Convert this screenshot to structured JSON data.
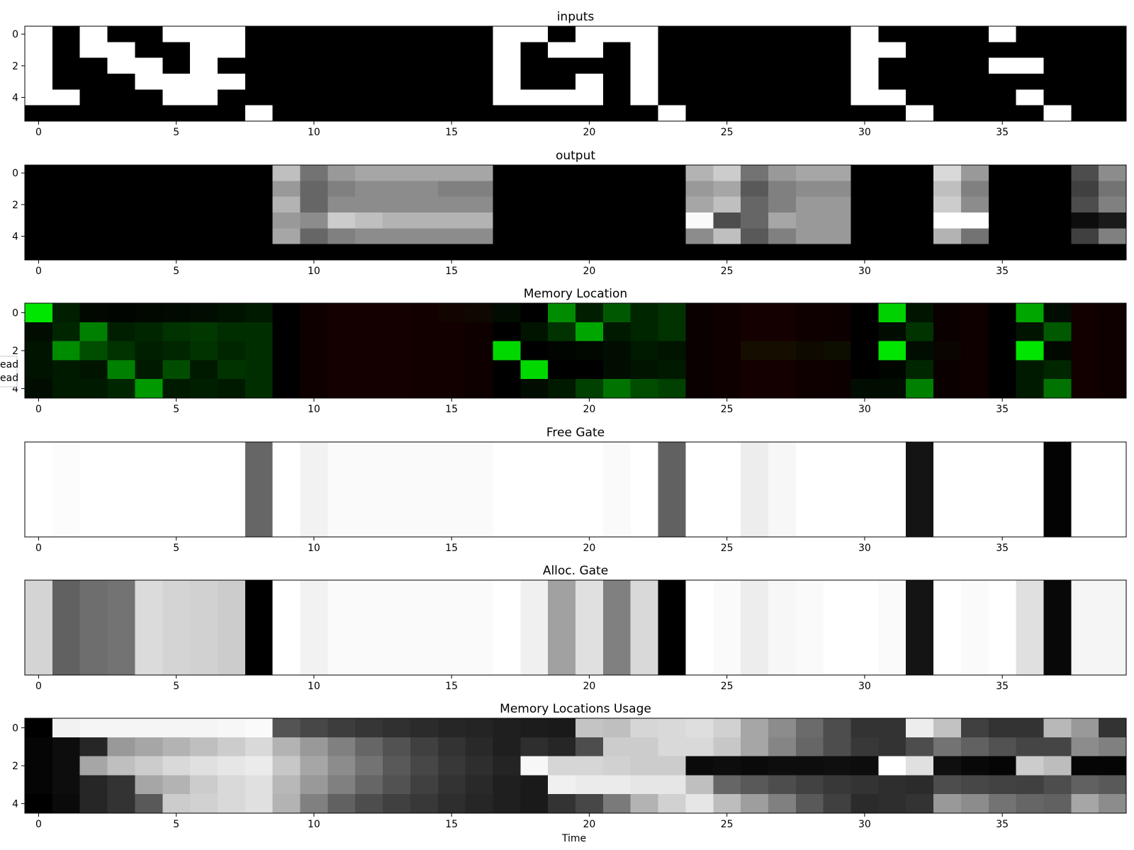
{
  "figure": {
    "xlabel": "Time",
    "legend_fragments": [
      "ead",
      "ead"
    ]
  },
  "chart_data": [
    {
      "type": "heatmap",
      "title": "inputs",
      "colormap": "gray",
      "ylabel": "",
      "xlim": [
        -0.5,
        39.5
      ],
      "ylim": [
        5.5,
        -0.5
      ],
      "xticks": [
        0,
        5,
        10,
        15,
        20,
        25,
        30,
        35
      ],
      "yticks": [
        0,
        2,
        4
      ],
      "grid": false,
      "values": [
        [
          1,
          0,
          1,
          0,
          0,
          1,
          1,
          1,
          0,
          0,
          0,
          0,
          0,
          0,
          0,
          0,
          0,
          1,
          1,
          0,
          1,
          1,
          1,
          0,
          0,
          0,
          0,
          0,
          0,
          0,
          1,
          0,
          0,
          0,
          0,
          1,
          0,
          0,
          0,
          0
        ],
        [
          1,
          0,
          1,
          1,
          0,
          0,
          1,
          1,
          0,
          0,
          0,
          0,
          0,
          0,
          0,
          0,
          0,
          1,
          0,
          1,
          1,
          0,
          1,
          0,
          0,
          0,
          0,
          0,
          0,
          0,
          1,
          1,
          0,
          0,
          0,
          0,
          0,
          0,
          0,
          0
        ],
        [
          1,
          0,
          0,
          1,
          1,
          0,
          1,
          0,
          0,
          0,
          0,
          0,
          0,
          0,
          0,
          0,
          0,
          1,
          0,
          0,
          0,
          0,
          1,
          0,
          0,
          0,
          0,
          0,
          0,
          0,
          1,
          0,
          0,
          0,
          0,
          1,
          1,
          0,
          0,
          0
        ],
        [
          1,
          0,
          0,
          0,
          1,
          1,
          1,
          1,
          0,
          0,
          0,
          0,
          0,
          0,
          0,
          0,
          0,
          1,
          0,
          0,
          1,
          0,
          1,
          0,
          0,
          0,
          0,
          0,
          0,
          0,
          1,
          0,
          0,
          0,
          0,
          0,
          0,
          0,
          0,
          0
        ],
        [
          1,
          1,
          0,
          0,
          0,
          1,
          1,
          0,
          0,
          0,
          0,
          0,
          0,
          0,
          0,
          0,
          0,
          1,
          1,
          1,
          1,
          0,
          1,
          0,
          0,
          0,
          0,
          0,
          0,
          0,
          1,
          1,
          0,
          0,
          0,
          0,
          1,
          0,
          0,
          0
        ],
        [
          0,
          0,
          0,
          0,
          0,
          0,
          0,
          0,
          1,
          0,
          0,
          0,
          0,
          0,
          0,
          0,
          0,
          0,
          0,
          0,
          0,
          0,
          0,
          1,
          0,
          0,
          0,
          0,
          0,
          0,
          0,
          0,
          1,
          0,
          0,
          0,
          0,
          1,
          0,
          0
        ]
      ]
    },
    {
      "type": "heatmap",
      "title": "output",
      "colormap": "gray",
      "ylabel": "",
      "xlim": [
        -0.5,
        39.5
      ],
      "ylim": [
        5.5,
        -0.5
      ],
      "xticks": [
        0,
        5,
        10,
        15,
        20,
        25,
        30,
        35
      ],
      "yticks": [
        0,
        2,
        4
      ],
      "grid": false,
      "values": [
        [
          0,
          0,
          0,
          0,
          0,
          0,
          0,
          0,
          0,
          0.75,
          0.45,
          0.6,
          0.65,
          0.65,
          0.65,
          0.65,
          0.65,
          0,
          0,
          0,
          0,
          0,
          0,
          0,
          0.7,
          0.8,
          0.45,
          0.6,
          0.65,
          0.65,
          0,
          0,
          0,
          0.85,
          0.6,
          0,
          0,
          0,
          0.3,
          0.55
        ],
        [
          0,
          0,
          0,
          0,
          0,
          0,
          0,
          0,
          0,
          0.6,
          0.4,
          0.5,
          0.55,
          0.55,
          0.55,
          0.5,
          0.5,
          0,
          0,
          0,
          0,
          0,
          0,
          0,
          0.6,
          0.65,
          0.35,
          0.5,
          0.55,
          0.55,
          0,
          0,
          0,
          0.75,
          0.5,
          0,
          0,
          0,
          0.25,
          0.45
        ],
        [
          0,
          0,
          0,
          0,
          0,
          0,
          0,
          0,
          0,
          0.7,
          0.4,
          0.55,
          0.55,
          0.55,
          0.55,
          0.55,
          0.55,
          0,
          0,
          0,
          0,
          0,
          0,
          0,
          0.65,
          0.75,
          0.4,
          0.5,
          0.6,
          0.6,
          0,
          0,
          0,
          0.8,
          0.55,
          0,
          0,
          0,
          0.3,
          0.5
        ],
        [
          0,
          0,
          0,
          0,
          0,
          0,
          0,
          0,
          0,
          0.6,
          0.55,
          0.8,
          0.75,
          0.7,
          0.7,
          0.7,
          0.7,
          0,
          0,
          0,
          0,
          0,
          0,
          0,
          0.98,
          0.3,
          0.4,
          0.65,
          0.6,
          0.6,
          0,
          0,
          0,
          1,
          1,
          0,
          0,
          0,
          0.05,
          0.1
        ],
        [
          0,
          0,
          0,
          0,
          0,
          0,
          0,
          0,
          0,
          0.65,
          0.4,
          0.5,
          0.55,
          0.55,
          0.55,
          0.55,
          0.55,
          0,
          0,
          0,
          0,
          0,
          0,
          0,
          0.55,
          0.75,
          0.35,
          0.5,
          0.6,
          0.6,
          0,
          0,
          0,
          0.7,
          0.45,
          0,
          0,
          0,
          0.25,
          0.5
        ],
        [
          0,
          0,
          0,
          0,
          0,
          0,
          0,
          0,
          0,
          0,
          0,
          0,
          0,
          0,
          0,
          0,
          0,
          0,
          0,
          0,
          0,
          0,
          0,
          0,
          0,
          0,
          0,
          0,
          0,
          0,
          0,
          0,
          0,
          0,
          0,
          0,
          0,
          0,
          0,
          0
        ]
      ]
    },
    {
      "type": "heatmap",
      "title": "Memory Location",
      "colormap": "green-write / red-read",
      "ylabel": "",
      "xlim": [
        -0.5,
        39.5
      ],
      "ylim": [
        4.5,
        -0.5
      ],
      "xticks": [
        0,
        5,
        10,
        15,
        20,
        25,
        30,
        35
      ],
      "yticks": [
        0,
        2,
        4
      ],
      "grid": false,
      "write": [
        [
          0.9,
          0.12,
          0.03,
          0.02,
          0.03,
          0.04,
          0.05,
          0.07,
          0.1,
          0,
          0,
          0,
          0,
          0,
          0,
          0.02,
          0.03,
          0.05,
          0,
          0.55,
          0.12,
          0.35,
          0.15,
          0.2,
          0,
          0,
          0,
          0,
          0,
          0,
          0,
          0.82,
          0.08,
          0,
          0,
          0,
          0.65,
          0.05,
          0,
          0
        ],
        [
          0.05,
          0.15,
          0.5,
          0.12,
          0.15,
          0.2,
          0.22,
          0.18,
          0.18,
          0,
          0,
          0,
          0,
          0,
          0,
          0,
          0,
          0,
          0.08,
          0.2,
          0.65,
          0.1,
          0.15,
          0.2,
          0,
          0,
          0,
          0,
          0,
          0,
          0,
          0.05,
          0.2,
          0,
          0,
          0,
          0.08,
          0.35,
          0,
          0
        ],
        [
          0.08,
          0.55,
          0.3,
          0.2,
          0.12,
          0.15,
          0.2,
          0.15,
          0.18,
          0,
          0,
          0,
          0,
          0,
          0,
          0,
          0,
          0.85,
          0,
          0.02,
          0.03,
          0.05,
          0.1,
          0.08,
          0,
          0,
          0.05,
          0.05,
          0.04,
          0.05,
          0,
          0.9,
          0.05,
          0.02,
          0,
          0,
          0.9,
          0.03,
          0,
          0
        ],
        [
          0.07,
          0.1,
          0.08,
          0.5,
          0.1,
          0.3,
          0.1,
          0.2,
          0.18,
          0,
          0,
          0,
          0,
          0,
          0,
          0,
          0,
          0,
          0.85,
          0,
          0,
          0.05,
          0.08,
          0.1,
          0,
          0,
          0,
          0,
          0,
          0,
          0,
          0.02,
          0.15,
          0,
          0,
          0,
          0.1,
          0.15,
          0,
          0
        ],
        [
          0.05,
          0.1,
          0.1,
          0.15,
          0.6,
          0.1,
          0.12,
          0.1,
          0.18,
          0,
          0,
          0,
          0,
          0,
          0,
          0,
          0,
          0,
          0.05,
          0.1,
          0.25,
          0.45,
          0.3,
          0.25,
          0,
          0,
          0,
          0,
          0,
          0,
          0.05,
          0.05,
          0.5,
          0,
          0,
          0,
          0.1,
          0.45,
          0,
          0
        ]
      ],
      "read": [
        [
          0,
          0,
          0,
          0,
          0,
          0,
          0,
          0,
          0,
          0,
          0.06,
          0.08,
          0.08,
          0.08,
          0.07,
          0.07,
          0.06,
          0,
          0,
          0,
          0,
          0,
          0,
          0,
          0.04,
          0.06,
          0.08,
          0.08,
          0.06,
          0.05,
          0,
          0,
          0,
          0.04,
          0.06,
          0,
          0,
          0,
          0.07,
          0.06
        ],
        [
          0,
          0,
          0,
          0,
          0,
          0,
          0,
          0,
          0,
          0,
          0.06,
          0.08,
          0.08,
          0.08,
          0.07,
          0.07,
          0.06,
          0,
          0,
          0,
          0,
          0,
          0,
          0,
          0.04,
          0.06,
          0.08,
          0.08,
          0.06,
          0.05,
          0,
          0,
          0,
          0.04,
          0.06,
          0,
          0,
          0,
          0.07,
          0.06
        ],
        [
          0,
          0,
          0,
          0,
          0,
          0,
          0,
          0,
          0,
          0,
          0.06,
          0.08,
          0.08,
          0.08,
          0.07,
          0.07,
          0.06,
          0,
          0,
          0,
          0,
          0,
          0,
          0,
          0.04,
          0.06,
          0.08,
          0.08,
          0.06,
          0.05,
          0,
          0,
          0,
          0.04,
          0.06,
          0,
          0,
          0,
          0.07,
          0.06
        ],
        [
          0,
          0,
          0,
          0,
          0,
          0,
          0,
          0,
          0,
          0,
          0.06,
          0.08,
          0.08,
          0.08,
          0.07,
          0.07,
          0.06,
          0,
          0,
          0,
          0,
          0,
          0,
          0,
          0.04,
          0.06,
          0.08,
          0.08,
          0.06,
          0.05,
          0,
          0,
          0,
          0.04,
          0.06,
          0,
          0,
          0,
          0.07,
          0.06
        ],
        [
          0,
          0,
          0,
          0,
          0,
          0,
          0,
          0,
          0,
          0,
          0.06,
          0.08,
          0.08,
          0.08,
          0.07,
          0.07,
          0.06,
          0,
          0,
          0,
          0,
          0,
          0,
          0,
          0.04,
          0.06,
          0.08,
          0.08,
          0.06,
          0.05,
          0,
          0,
          0,
          0.04,
          0.06,
          0,
          0,
          0,
          0.07,
          0.06
        ]
      ]
    },
    {
      "type": "heatmap",
      "title": "Free Gate",
      "colormap": "gray",
      "ylabel": "",
      "xlim": [
        -0.5,
        39.5
      ],
      "ylim": [
        0.5,
        -0.5
      ],
      "xticks": [
        0,
        5,
        10,
        15,
        20,
        25,
        30,
        35
      ],
      "yticks": [],
      "grid": false,
      "values": [
        [
          1,
          0.99,
          1,
          1,
          1,
          1,
          1,
          1,
          0.4,
          1,
          0.95,
          0.98,
          0.98,
          0.98,
          0.98,
          0.98,
          0.98,
          1,
          1,
          1,
          1,
          0.98,
          1,
          0.38,
          1,
          1,
          0.93,
          0.97,
          1,
          1,
          1,
          1,
          0.08,
          1,
          1,
          1,
          1,
          0.01,
          1,
          1
        ]
      ]
    },
    {
      "type": "heatmap",
      "title": "Alloc. Gate",
      "colormap": "gray",
      "ylabel": "",
      "xlim": [
        -0.5,
        39.5
      ],
      "ylim": [
        0.5,
        -0.5
      ],
      "xticks": [
        0,
        5,
        10,
        15,
        20,
        25,
        30,
        35
      ],
      "yticks": [],
      "grid": false,
      "values": [
        [
          0.83,
          0.38,
          0.43,
          0.45,
          0.86,
          0.83,
          0.82,
          0.8,
          0,
          1,
          0.95,
          0.98,
          0.98,
          0.98,
          0.98,
          0.98,
          0.98,
          1,
          0.94,
          0.63,
          0.88,
          0.5,
          0.85,
          0,
          1,
          0.98,
          0.93,
          0.97,
          0.98,
          1,
          1,
          0.98,
          0.08,
          1,
          0.98,
          1,
          0.88,
          0.03,
          0.96,
          0.96
        ]
      ]
    },
    {
      "type": "heatmap",
      "title": "Memory Locations Usage",
      "colormap": "gray",
      "ylabel": "",
      "xlabel": "Time",
      "xlim": [
        -0.5,
        39.5
      ],
      "ylim": [
        4.5,
        -0.5
      ],
      "xticks": [
        0,
        5,
        10,
        15,
        20,
        25,
        30,
        35
      ],
      "yticks": [
        0,
        2,
        4
      ],
      "grid": false,
      "values": [
        [
          0,
          0.95,
          0.96,
          0.96,
          0.96,
          0.96,
          0.96,
          0.97,
          0.98,
          0.33,
          0.28,
          0.24,
          0.21,
          0.19,
          0.17,
          0.15,
          0.14,
          0.12,
          0.11,
          0.1,
          0.77,
          0.75,
          0.84,
          0.85,
          0.87,
          0.82,
          0.65,
          0.55,
          0.42,
          0.3,
          0.2,
          0.2,
          0.93,
          0.76,
          0.25,
          0.2,
          0.2,
          0.72,
          0.6,
          0.2
        ],
        [
          0.02,
          0.05,
          0.15,
          0.6,
          0.65,
          0.7,
          0.75,
          0.8,
          0.85,
          0.7,
          0.6,
          0.5,
          0.4,
          0.32,
          0.25,
          0.2,
          0.16,
          0.12,
          0.18,
          0.15,
          0.3,
          0.8,
          0.8,
          0.85,
          0.85,
          0.78,
          0.65,
          0.52,
          0.4,
          0.3,
          0.22,
          0.2,
          0.3,
          0.45,
          0.38,
          0.32,
          0.27,
          0.27,
          0.55,
          0.5
        ],
        [
          0.02,
          0.05,
          0.65,
          0.75,
          0.8,
          0.85,
          0.88,
          0.9,
          0.92,
          0.78,
          0.65,
          0.55,
          0.45,
          0.35,
          0.28,
          0.22,
          0.18,
          0.14,
          0.97,
          0.84,
          0.84,
          0.82,
          0.8,
          0.8,
          0.04,
          0.05,
          0.04,
          0.05,
          0.05,
          0.06,
          0.05,
          1,
          0.88,
          0.06,
          0.03,
          0.02,
          0.8,
          0.74,
          0.02,
          0.02
        ],
        [
          0.02,
          0.05,
          0.15,
          0.2,
          0.65,
          0.7,
          0.8,
          0.85,
          0.88,
          0.72,
          0.6,
          0.5,
          0.4,
          0.32,
          0.25,
          0.2,
          0.16,
          0.12,
          0.1,
          0.94,
          0.92,
          0.92,
          0.9,
          0.9,
          0.75,
          0.4,
          0.35,
          0.3,
          0.26,
          0.22,
          0.2,
          0.18,
          0.17,
          0.3,
          0.28,
          0.26,
          0.25,
          0.3,
          0.38,
          0.35
        ],
        [
          0,
          0.04,
          0.15,
          0.2,
          0.35,
          0.8,
          0.82,
          0.85,
          0.88,
          0.7,
          0.5,
          0.38,
          0.3,
          0.25,
          0.22,
          0.18,
          0.15,
          0.12,
          0.1,
          0.2,
          0.28,
          0.48,
          0.7,
          0.82,
          0.9,
          0.74,
          0.62,
          0.5,
          0.35,
          0.25,
          0.17,
          0.18,
          0.2,
          0.6,
          0.55,
          0.45,
          0.4,
          0.38,
          0.65,
          0.55
        ]
      ]
    }
  ]
}
